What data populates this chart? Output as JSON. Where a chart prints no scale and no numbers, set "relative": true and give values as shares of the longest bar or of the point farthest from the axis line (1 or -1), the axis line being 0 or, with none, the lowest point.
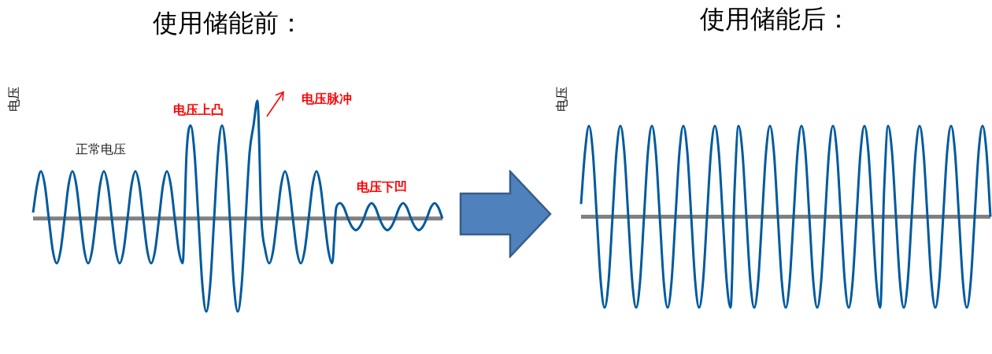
{
  "chart_data": [
    {
      "type": "line",
      "title": "使用储能前：",
      "ylabel": "电压",
      "relative": true,
      "legend": false,
      "annotations": [
        "正常电压",
        "电压上凸",
        "电压脉冲",
        "电压下凹"
      ],
      "categories": [
        null,
        null,
        null,
        null,
        null,
        null,
        null,
        null,
        null,
        null,
        null,
        null,
        null,
        null,
        null,
        null,
        null,
        null,
        null,
        null,
        null,
        null,
        null,
        null,
        null,
        null,
        null,
        null,
        null,
        null,
        null,
        null,
        null,
        null,
        null,
        null,
        null,
        null,
        null,
        null,
        null,
        null,
        null,
        null,
        null,
        null,
        null,
        null,
        null,
        null,
        null,
        null,
        null,
        null,
        null,
        null,
        null,
        null,
        null,
        null,
        null,
        null,
        null,
        null,
        null,
        null,
        null,
        null,
        null,
        null,
        null,
        null,
        null,
        null,
        null,
        null,
        null,
        null,
        null,
        null,
        null,
        null,
        null,
        null,
        null,
        null,
        null,
        null,
        null,
        null,
        null,
        null,
        null,
        null,
        null,
        null,
        null,
        null,
        null,
        null,
        null,
        null,
        null,
        null,
        null
      ],
      "series": [
        {
          "color": "#005a9e",
          "values": [
            0.05,
            0.28,
            0.4,
            0.28,
            0,
            -0.27,
            -0.38,
            -0.27,
            0,
            0.28,
            0.4,
            0.28,
            0,
            -0.27,
            -0.38,
            -0.27,
            0,
            0.28,
            0.4,
            0.28,
            0,
            -0.27,
            -0.38,
            -0.27,
            0,
            0.28,
            0.4,
            0.28,
            0,
            -0.27,
            -0.38,
            -0.27,
            0,
            0.28,
            0.4,
            0.28,
            0,
            -0.27,
            -0.38,
            0.56,
            0.79,
            0.56,
            0,
            -0.56,
            -0.79,
            -0.56,
            0,
            0.56,
            0.79,
            0.56,
            0,
            -0.56,
            -0.79,
            -0.56,
            0,
            0.56,
            0.79,
            1,
            0,
            -0.27,
            -0.38,
            -0.27,
            0,
            0.28,
            0.4,
            0.28,
            0,
            -0.27,
            -0.38,
            -0.27,
            0,
            0.28,
            0.4,
            0.28,
            0,
            -0.27,
            -0.38,
            0.09,
            0.13,
            0.09,
            0,
            -0.07,
            -0.1,
            -0.07,
            0,
            0.09,
            0.13,
            0.09,
            0,
            -0.07,
            -0.1,
            -0.07,
            0,
            0.09,
            0.13,
            0.09,
            0,
            -0.07,
            -0.1,
            -0.07,
            0,
            0.09,
            0.13,
            0.09,
            0
          ]
        }
      ]
    },
    {
      "type": "line",
      "title": "使用储能后：",
      "ylabel": "电压",
      "relative": true,
      "legend": false,
      "categories": [
        null,
        null,
        null,
        null,
        null,
        null,
        null,
        null,
        null,
        null,
        null,
        null,
        null,
        null,
        null,
        null,
        null,
        null,
        null,
        null,
        null,
        null,
        null,
        null,
        null,
        null,
        null,
        null,
        null,
        null,
        null,
        null,
        null,
        null,
        null,
        null,
        null,
        null,
        null,
        null,
        null,
        null,
        null,
        null,
        null,
        null,
        null,
        null,
        null,
        null,
        null,
        null,
        null,
        null,
        null,
        null,
        null,
        null,
        null,
        null,
        null,
        null,
        null,
        null,
        null,
        null,
        null,
        null,
        null,
        null,
        null,
        null,
        null,
        null,
        null,
        null,
        null,
        null,
        null,
        null,
        null,
        null,
        null,
        null,
        null,
        null,
        null,
        null,
        null,
        null,
        null,
        null,
        null,
        null,
        null,
        null,
        null,
        null,
        null,
        null,
        null,
        null,
        null,
        null,
        null
      ],
      "series": [
        {
          "color": "#005a9e",
          "values": [
            0.14,
            0.71,
            1,
            0.71,
            0,
            -0.71,
            -1,
            -0.71,
            0,
            0.71,
            1,
            0.71,
            0,
            -0.71,
            -1,
            -0.71,
            0,
            0.71,
            1,
            0.71,
            0,
            -0.71,
            -1,
            -0.71,
            0,
            0.71,
            1,
            0.71,
            0,
            -0.71,
            -1,
            -0.71,
            0,
            0.71,
            1,
            0.71,
            0,
            -0.71,
            -1,
            0.3,
            1,
            0.71,
            0,
            -0.71,
            -1,
            -0.71,
            0,
            0.71,
            1,
            0.71,
            0,
            -0.71,
            -1,
            -0.71,
            0,
            0.71,
            1,
            0.71,
            0,
            -0.71,
            -1,
            -0.71,
            0,
            0.71,
            1,
            0.71,
            0,
            -0.71,
            -1,
            -0.71,
            0,
            0.71,
            1,
            0.71,
            0,
            -0.71,
            -1,
            0.3,
            1,
            0.71,
            0,
            -0.71,
            -1,
            -0.71,
            0,
            0.71,
            1,
            0.71,
            0,
            -0.71,
            -1,
            -0.71,
            0,
            0.71,
            1,
            0.71,
            0,
            -0.71,
            -1,
            -0.71,
            0,
            0.71,
            1,
            0.71,
            0
          ]
        }
      ]
    }
  ]
}
